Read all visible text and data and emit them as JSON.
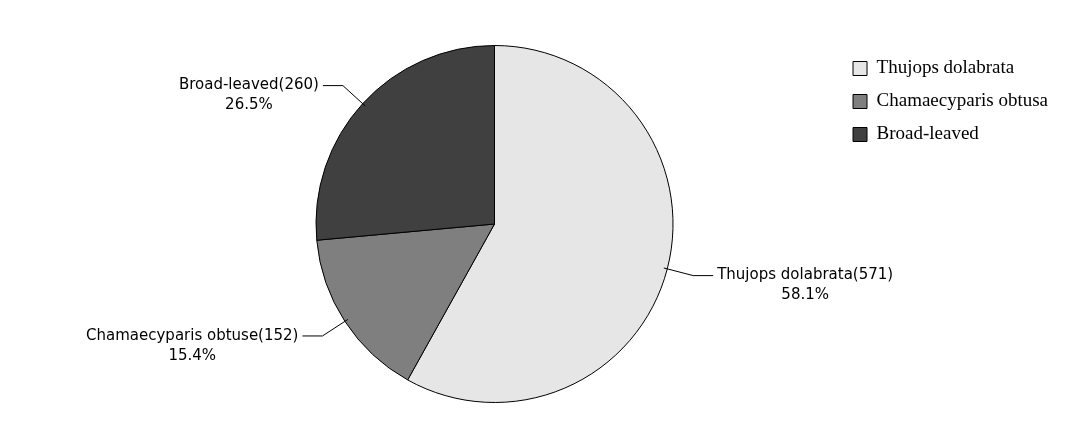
{
  "chart_data": {
    "type": "pie",
    "categories": [
      "Thujops dolabrata",
      "Chamaecyparis obtusa",
      "Broad-leaved"
    ],
    "values": [
      571,
      152,
      260
    ],
    "colors": [
      "#e6e6e6",
      "#7f7f7f",
      "#404040"
    ],
    "value_labels": [
      "Thujops dolabrata(571)\n58.1%",
      "Chamaecyparis obtuse(152)\n15.4%",
      "Broad-leaved(260)\n26.5%"
    ],
    "legend": "top right"
  }
}
